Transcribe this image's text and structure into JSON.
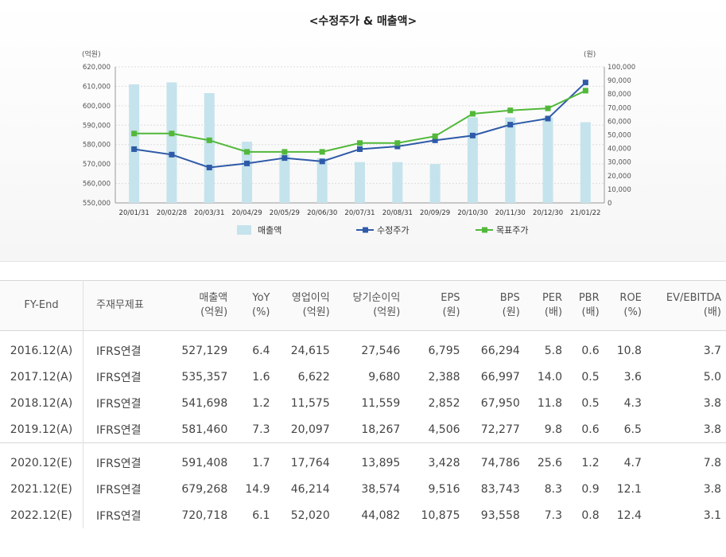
{
  "chart_data": {
    "type": "bar-line-combo",
    "title": "<수정주가 & 매출액>",
    "left_axis_unit": "(억원)",
    "right_axis_unit": "(원)",
    "left_ylim": [
      550000,
      620000
    ],
    "right_ylim": [
      0,
      100000
    ],
    "left_ticks": [
      "620,000",
      "610,000",
      "600,000",
      "590,000",
      "580,000",
      "570,000",
      "560,000",
      "550,000"
    ],
    "right_ticks": [
      "100,000",
      "90,000",
      "80,000",
      "70,000",
      "60,000",
      "50,000",
      "40,000",
      "30,000",
      "20,000",
      "10,000",
      "0"
    ],
    "categories": [
      "20/01/31",
      "20/02/28",
      "20/03/31",
      "20/04/29",
      "20/05/29",
      "20/06/30",
      "20/07/31",
      "20/08/31",
      "20/09/29",
      "20/10/30",
      "20/11/30",
      "20/12/30",
      "21/01/22"
    ],
    "series": [
      {
        "name": "매출액",
        "type": "bar",
        "axis": "left",
        "color": "#c5e3ec",
        "values": [
          611000,
          612000,
          606500,
          581500,
          575000,
          573000,
          571000,
          571000,
          570000,
          594000,
          594000,
          594000,
          591500
        ]
      },
      {
        "name": "수정주가",
        "type": "line",
        "axis": "right",
        "color": "#2f5aa8",
        "values": [
          39500,
          35500,
          26000,
          29000,
          33000,
          30500,
          39500,
          41500,
          46000,
          49500,
          57500,
          62000,
          88500
        ]
      },
      {
        "name": "목표주가",
        "type": "line",
        "axis": "right",
        "color": "#52b83a",
        "values": [
          51000,
          51000,
          46000,
          37500,
          37500,
          37500,
          44000,
          44000,
          49000,
          65500,
          68000,
          69500,
          82500
        ]
      }
    ],
    "legend_position": "bottom",
    "grid": true
  },
  "table": {
    "headers": [
      {
        "top": "FY-End",
        "bottom": ""
      },
      {
        "top": "주재무제표",
        "bottom": ""
      },
      {
        "top": "매출액",
        "bottom": "(억원)"
      },
      {
        "top": "YoY",
        "bottom": "(%)"
      },
      {
        "top": "영업이익",
        "bottom": "(억원)"
      },
      {
        "top": "당기순이익",
        "bottom": "(억원)"
      },
      {
        "top": "EPS",
        "bottom": "(원)"
      },
      {
        "top": "BPS",
        "bottom": "(원)"
      },
      {
        "top": "PER",
        "bottom": "(배)"
      },
      {
        "top": "PBR",
        "bottom": "(배)"
      },
      {
        "top": "ROE",
        "bottom": "(%)"
      },
      {
        "top": "EV/EBITDA",
        "bottom": "(배)"
      }
    ],
    "actual_rows": [
      [
        "2016.12(A)",
        "IFRS연결",
        "527,129",
        "6.4",
        "24,615",
        "27,546",
        "6,795",
        "66,294",
        "5.8",
        "0.6",
        "10.8",
        "3.7"
      ],
      [
        "2017.12(A)",
        "IFRS연결",
        "535,357",
        "1.6",
        "6,622",
        "9,680",
        "2,388",
        "66,997",
        "14.0",
        "0.5",
        "3.6",
        "5.0"
      ],
      [
        "2018.12(A)",
        "IFRS연결",
        "541,698",
        "1.2",
        "11,575",
        "11,559",
        "2,852",
        "67,950",
        "11.8",
        "0.5",
        "4.3",
        "3.8"
      ],
      [
        "2019.12(A)",
        "IFRS연결",
        "581,460",
        "7.3",
        "20,097",
        "18,267",
        "4,506",
        "72,277",
        "9.8",
        "0.6",
        "6.5",
        "3.8"
      ]
    ],
    "estimate_rows": [
      [
        "2020.12(E)",
        "IFRS연결",
        "591,408",
        "1.7",
        "17,764",
        "13,895",
        "3,428",
        "74,786",
        "25.6",
        "1.2",
        "4.7",
        "7.8"
      ],
      [
        "2021.12(E)",
        "IFRS연결",
        "679,268",
        "14.9",
        "46,214",
        "38,574",
        "9,516",
        "83,743",
        "8.3",
        "0.9",
        "12.1",
        "3.8"
      ],
      [
        "2022.12(E)",
        "IFRS연결",
        "720,718",
        "6.1",
        "52,020",
        "44,082",
        "10,875",
        "93,558",
        "7.3",
        "0.8",
        "12.4",
        "3.1"
      ]
    ]
  }
}
